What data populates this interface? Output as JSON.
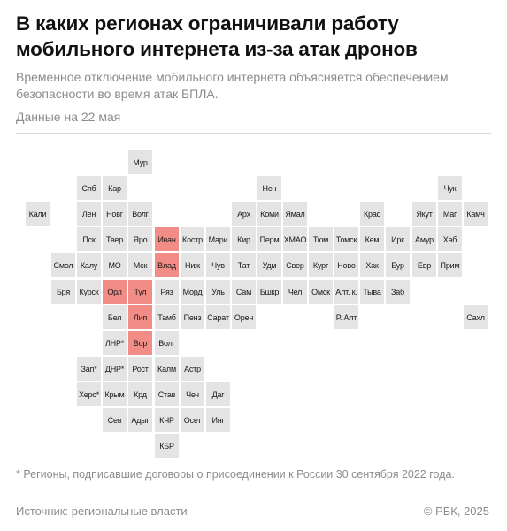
{
  "title": "В каких регионах ограничивали работу мобильного интернета из-за атак дронов",
  "subtitle": "Временное отключение мобильного интернета объясняется обеспечением безопасности во время атак БПЛА.",
  "date_note": "Данные на 22 мая",
  "footnote": "* Регионы, подписавшие договоры о присоединении к России 30 сентября 2022 года.",
  "source": "Источник: региональные власти",
  "copyright": "© РБК, 2025",
  "colors": {
    "highlight": "#f28c86",
    "default": "#e4e4e4"
  },
  "regions": [
    {
      "label": "Мур",
      "row": 0,
      "col": 4,
      "restricted": false
    },
    {
      "label": "Спб",
      "row": 1,
      "col": 2,
      "restricted": false
    },
    {
      "label": "Кар",
      "row": 1,
      "col": 3,
      "restricted": false
    },
    {
      "label": "Нен",
      "row": 1,
      "col": 9,
      "restricted": false
    },
    {
      "label": "Чук",
      "row": 1,
      "col": 16,
      "restricted": false
    },
    {
      "label": "Кали",
      "row": 2,
      "col": 0,
      "restricted": false
    },
    {
      "label": "Лен",
      "row": 2,
      "col": 2,
      "restricted": false
    },
    {
      "label": "Новг",
      "row": 2,
      "col": 3,
      "restricted": false
    },
    {
      "label": "Волг",
      "row": 2,
      "col": 4,
      "restricted": false
    },
    {
      "label": "Арх",
      "row": 2,
      "col": 8,
      "restricted": false
    },
    {
      "label": "Коми",
      "row": 2,
      "col": 9,
      "restricted": false
    },
    {
      "label": "Ямал",
      "row": 2,
      "col": 10,
      "restricted": false
    },
    {
      "label": "Крас",
      "row": 2,
      "col": 13,
      "restricted": false
    },
    {
      "label": "Якут",
      "row": 2,
      "col": 15,
      "restricted": false
    },
    {
      "label": "Маг",
      "row": 2,
      "col": 16,
      "restricted": false
    },
    {
      "label": "Камч",
      "row": 2,
      "col": 17,
      "restricted": false
    },
    {
      "label": "Пск",
      "row": 3,
      "col": 2,
      "restricted": false
    },
    {
      "label": "Твер",
      "row": 3,
      "col": 3,
      "restricted": false
    },
    {
      "label": "Яро",
      "row": 3,
      "col": 4,
      "restricted": false
    },
    {
      "label": "Иван",
      "row": 3,
      "col": 5,
      "restricted": true
    },
    {
      "label": "Костр",
      "row": 3,
      "col": 6,
      "restricted": false
    },
    {
      "label": "Мари",
      "row": 3,
      "col": 7,
      "restricted": false
    },
    {
      "label": "Кир",
      "row": 3,
      "col": 8,
      "restricted": false
    },
    {
      "label": "Перм",
      "row": 3,
      "col": 9,
      "restricted": false
    },
    {
      "label": "ХМАО",
      "row": 3,
      "col": 10,
      "restricted": false
    },
    {
      "label": "Тюм",
      "row": 3,
      "col": 11,
      "restricted": false
    },
    {
      "label": "Томск",
      "row": 3,
      "col": 12,
      "restricted": false
    },
    {
      "label": "Кем",
      "row": 3,
      "col": 13,
      "restricted": false
    },
    {
      "label": "Ирк",
      "row": 3,
      "col": 14,
      "restricted": false
    },
    {
      "label": "Амур",
      "row": 3,
      "col": 15,
      "restricted": false
    },
    {
      "label": "Хаб",
      "row": 3,
      "col": 16,
      "restricted": false
    },
    {
      "label": "Смол",
      "row": 4,
      "col": 1,
      "restricted": false
    },
    {
      "label": "Калу",
      "row": 4,
      "col": 2,
      "restricted": false
    },
    {
      "label": "МО",
      "row": 4,
      "col": 3,
      "restricted": false
    },
    {
      "label": "Мск",
      "row": 4,
      "col": 4,
      "restricted": false
    },
    {
      "label": "Влад",
      "row": 4,
      "col": 5,
      "restricted": true
    },
    {
      "label": "Ниж",
      "row": 4,
      "col": 6,
      "restricted": false
    },
    {
      "label": "Чув",
      "row": 4,
      "col": 7,
      "restricted": false
    },
    {
      "label": "Тат",
      "row": 4,
      "col": 8,
      "restricted": false
    },
    {
      "label": "Удм",
      "row": 4,
      "col": 9,
      "restricted": false
    },
    {
      "label": "Свер",
      "row": 4,
      "col": 10,
      "restricted": false
    },
    {
      "label": "Кург",
      "row": 4,
      "col": 11,
      "restricted": false
    },
    {
      "label": "Ново",
      "row": 4,
      "col": 12,
      "restricted": false
    },
    {
      "label": "Хак",
      "row": 4,
      "col": 13,
      "restricted": false
    },
    {
      "label": "Бур",
      "row": 4,
      "col": 14,
      "restricted": false
    },
    {
      "label": "Евр",
      "row": 4,
      "col": 15,
      "restricted": false
    },
    {
      "label": "Прим",
      "row": 4,
      "col": 16,
      "restricted": false
    },
    {
      "label": "Бря",
      "row": 5,
      "col": 1,
      "restricted": false
    },
    {
      "label": "Курск",
      "row": 5,
      "col": 2,
      "restricted": false
    },
    {
      "label": "Орл",
      "row": 5,
      "col": 3,
      "restricted": true
    },
    {
      "label": "Тул",
      "row": 5,
      "col": 4,
      "restricted": true
    },
    {
      "label": "Ряз",
      "row": 5,
      "col": 5,
      "restricted": false
    },
    {
      "label": "Морд",
      "row": 5,
      "col": 6,
      "restricted": false
    },
    {
      "label": "Уль",
      "row": 5,
      "col": 7,
      "restricted": false
    },
    {
      "label": "Сам",
      "row": 5,
      "col": 8,
      "restricted": false
    },
    {
      "label": "Бшкр",
      "row": 5,
      "col": 9,
      "restricted": false
    },
    {
      "label": "Чел",
      "row": 5,
      "col": 10,
      "restricted": false
    },
    {
      "label": "Омск",
      "row": 5,
      "col": 11,
      "restricted": false
    },
    {
      "label": "Алт. к.",
      "row": 5,
      "col": 12,
      "restricted": false
    },
    {
      "label": "Тыва",
      "row": 5,
      "col": 13,
      "restricted": false
    },
    {
      "label": "Заб",
      "row": 5,
      "col": 14,
      "restricted": false
    },
    {
      "label": "Бел",
      "row": 6,
      "col": 3,
      "restricted": false
    },
    {
      "label": "Лип",
      "row": 6,
      "col": 4,
      "restricted": true
    },
    {
      "label": "Тамб",
      "row": 6,
      "col": 5,
      "restricted": false
    },
    {
      "label": "Пенз",
      "row": 6,
      "col": 6,
      "restricted": false
    },
    {
      "label": "Сарат",
      "row": 6,
      "col": 7,
      "restricted": false
    },
    {
      "label": "Орен",
      "row": 6,
      "col": 8,
      "restricted": false
    },
    {
      "label": "Р. Алт",
      "row": 6,
      "col": 12,
      "restricted": false
    },
    {
      "label": "Сахл",
      "row": 6,
      "col": 17,
      "restricted": false
    },
    {
      "label": "ЛНР*",
      "row": 7,
      "col": 3,
      "restricted": false
    },
    {
      "label": "Вор",
      "row": 7,
      "col": 4,
      "restricted": true
    },
    {
      "label": "Волг",
      "row": 7,
      "col": 5,
      "restricted": false
    },
    {
      "label": "Зап*",
      "row": 8,
      "col": 2,
      "restricted": false
    },
    {
      "label": "ДНР*",
      "row": 8,
      "col": 3,
      "restricted": false
    },
    {
      "label": "Рост",
      "row": 8,
      "col": 4,
      "restricted": false
    },
    {
      "label": "Калм",
      "row": 8,
      "col": 5,
      "restricted": false
    },
    {
      "label": "Астр",
      "row": 8,
      "col": 6,
      "restricted": false
    },
    {
      "label": "Херс*",
      "row": 9,
      "col": 2,
      "restricted": false
    },
    {
      "label": "Крым",
      "row": 9,
      "col": 3,
      "restricted": false
    },
    {
      "label": "Крд",
      "row": 9,
      "col": 4,
      "restricted": false
    },
    {
      "label": "Став",
      "row": 9,
      "col": 5,
      "restricted": false
    },
    {
      "label": "Чеч",
      "row": 9,
      "col": 6,
      "restricted": false
    },
    {
      "label": "Даг",
      "row": 9,
      "col": 7,
      "restricted": false
    },
    {
      "label": "Сев",
      "row": 10,
      "col": 3,
      "restricted": false
    },
    {
      "label": "Адыг",
      "row": 10,
      "col": 4,
      "restricted": false
    },
    {
      "label": "КЧР",
      "row": 10,
      "col": 5,
      "restricted": false
    },
    {
      "label": "Осет",
      "row": 10,
      "col": 6,
      "restricted": false
    },
    {
      "label": "Инг",
      "row": 10,
      "col": 7,
      "restricted": false
    },
    {
      "label": "КБР",
      "row": 11,
      "col": 5,
      "restricted": false
    }
  ]
}
